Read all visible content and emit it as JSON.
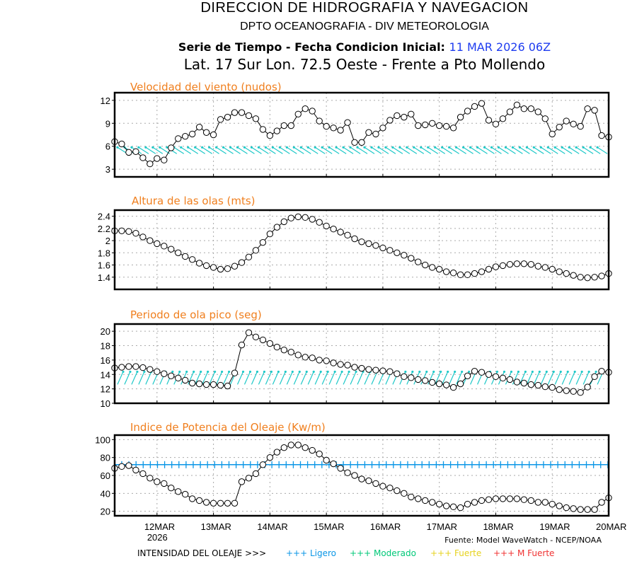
{
  "header": {
    "title": "DIRECCION DE HIDROGRAFIA Y NAVEGACION",
    "subtitle": "DPTO OCEANOGRAFIA - DIV METEOROLOGIA",
    "series_label": "Serie de Tiempo - Fecha Condicion Inicial:",
    "init_date": "11 MAR 2026 06Z",
    "location": "Lat. 17 Sur  Lon. 72.5 Oeste - Frente a Pto Mollendo"
  },
  "footer": {
    "source": "Fuente: Model WaveWatch - NCEP/NOAA",
    "intensity_label": "INTENSIDAD DEL OLEAJE >>>",
    "intensity_levels": [
      {
        "label": "+++ Ligero",
        "color": "#0a96e6"
      },
      {
        "label": "+++ Moderado",
        "color": "#00c878"
      },
      {
        "label": "+++ Fuerte",
        "color": "#e6d21e"
      },
      {
        "label": "+++ M Fuerte",
        "color": "#f03232"
      }
    ]
  },
  "chart_data": [
    {
      "type": "line",
      "title": "Velocidad del viento (nudos)",
      "x_start": "11 MAR 2026 06Z",
      "x_step_hours": 3,
      "x_ticks": [
        "12MAR\n2026",
        "13MAR",
        "14MAR",
        "15MAR",
        "16MAR",
        "17MAR",
        "18MAR",
        "19MAR",
        "20MAR"
      ],
      "ylim": [
        2,
        13
      ],
      "yticks": [
        3,
        6,
        9,
        12
      ],
      "grid": true,
      "marker": "open-circle",
      "direction_arrows": {
        "color": "#1ec8c8",
        "level": 5.3,
        "orientation": "from-NW"
      },
      "values": [
        6.6,
        6.3,
        5.2,
        5.3,
        4.5,
        3.7,
        4.4,
        4.2,
        5.8,
        7.0,
        7.3,
        7.6,
        8.5,
        7.8,
        7.5,
        9.5,
        9.8,
        10.4,
        10.4,
        10.0,
        9.6,
        8.2,
        7.4,
        8.0,
        8.7,
        8.7,
        10.2,
        10.9,
        10.6,
        9.3,
        8.6,
        8.4,
        8.1,
        9.1,
        6.5,
        6.5,
        7.8,
        7.6,
        8.4,
        9.4,
        10.0,
        9.8,
        10.2,
        8.7,
        8.8,
        9.0,
        8.7,
        8.6,
        8.4,
        9.8,
        10.6,
        11.2,
        11.6,
        9.4,
        8.9,
        9.6,
        10.5,
        11.4,
        10.9,
        10.9,
        10.5,
        9.6,
        7.6,
        8.5,
        9.3,
        8.9,
        8.6,
        10.9,
        10.7,
        7.4,
        7.2
      ]
    },
    {
      "type": "line",
      "title": "Altura de las olas (mts)",
      "x_start": "11 MAR 2026 06Z",
      "x_step_hours": 3,
      "ylim": [
        1.2,
        2.5
      ],
      "yticks": [
        1.4,
        1.6,
        1.8,
        2.0,
        2.2,
        2.4
      ],
      "grid": true,
      "marker": "open-circle",
      "values": [
        2.16,
        2.16,
        2.15,
        2.12,
        2.06,
        2.0,
        1.95,
        1.91,
        1.86,
        1.8,
        1.74,
        1.69,
        1.63,
        1.59,
        1.56,
        1.53,
        1.54,
        1.58,
        1.64,
        1.73,
        1.84,
        1.97,
        2.11,
        2.22,
        2.31,
        2.37,
        2.39,
        2.38,
        2.35,
        2.3,
        2.24,
        2.19,
        2.14,
        2.09,
        2.03,
        1.98,
        1.95,
        1.92,
        1.88,
        1.84,
        1.8,
        1.76,
        1.71,
        1.65,
        1.6,
        1.56,
        1.53,
        1.49,
        1.47,
        1.44,
        1.44,
        1.46,
        1.49,
        1.53,
        1.57,
        1.59,
        1.61,
        1.62,
        1.62,
        1.61,
        1.58,
        1.56,
        1.53,
        1.49,
        1.46,
        1.43,
        1.4,
        1.39,
        1.4,
        1.42,
        1.46
      ]
    },
    {
      "type": "line",
      "title": "Periodo de ola pico (seg)",
      "x_start": "11 MAR 2026 06Z",
      "x_step_hours": 3,
      "ylim": [
        10,
        21
      ],
      "yticks": [
        10,
        12,
        14,
        16,
        18,
        20
      ],
      "grid": true,
      "marker": "open-circle",
      "direction_arrows": {
        "color": "#1ec8c8",
        "level": 13.2,
        "orientation": "from-SSW"
      },
      "values": [
        14.9,
        15.0,
        15.1,
        15.1,
        14.95,
        14.7,
        14.4,
        14.1,
        13.8,
        13.5,
        13.2,
        12.8,
        12.7,
        12.6,
        12.6,
        12.5,
        12.4,
        14.2,
        18.1,
        19.8,
        19.2,
        18.8,
        18.3,
        17.8,
        17.4,
        17.1,
        16.7,
        16.4,
        16.3,
        16.0,
        15.9,
        15.6,
        15.4,
        15.3,
        15.0,
        14.85,
        14.7,
        14.6,
        14.5,
        14.4,
        14.1,
        13.7,
        13.55,
        13.3,
        13.15,
        12.9,
        12.7,
        12.55,
        12.2,
        12.7,
        13.8,
        14.45,
        14.3,
        14.0,
        13.7,
        13.5,
        13.3,
        12.95,
        12.8,
        12.6,
        12.5,
        12.3,
        12.2,
        11.9,
        11.75,
        11.65,
        11.5,
        12.25,
        13.7,
        14.45,
        14.3
      ]
    },
    {
      "type": "line",
      "title": "Indice de Potencia del Oleaje (Kw/m)",
      "x_start": "11 MAR 2026 06Z",
      "x_step_hours": 3,
      "ylim": [
        15,
        105
      ],
      "yticks": [
        20,
        40,
        60,
        80,
        100
      ],
      "grid": true,
      "marker": "open-circle",
      "threshold_line": {
        "value": 72,
        "color": "#0a96e6",
        "label": "Ligero"
      },
      "values": [
        68,
        70,
        71,
        66,
        62,
        57,
        53,
        51,
        46,
        42,
        39,
        34,
        32,
        30,
        29,
        29,
        29,
        29,
        53,
        57,
        62,
        72,
        80,
        86,
        91,
        94,
        94,
        91,
        88,
        84,
        77,
        73,
        68,
        63,
        60,
        56,
        54,
        51,
        48,
        46,
        43,
        40,
        36,
        34,
        32,
        30,
        28,
        26,
        25,
        24,
        28,
        30,
        32,
        33,
        34,
        34,
        34,
        34,
        33,
        32,
        30,
        30,
        28,
        26,
        24,
        23,
        22,
        22,
        22,
        30,
        35
      ]
    }
  ]
}
